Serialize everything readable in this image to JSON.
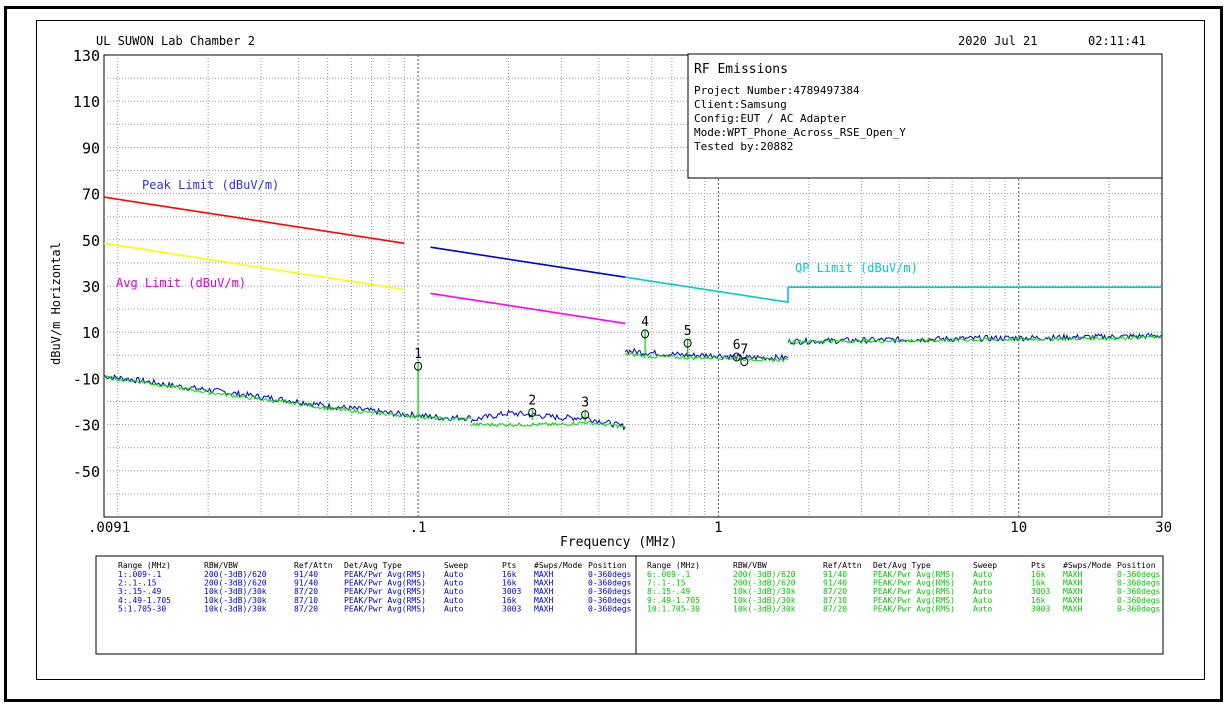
{
  "chart_data": {
    "type": "line",
    "header": {
      "left": "UL SUWON Lab Chamber 2",
      "date": "2020 Jul 21",
      "time": "02:11:41"
    },
    "xlabel": "Frequency (MHz)",
    "ylabel": "dBuV/m Horizontal",
    "x_scale": "log",
    "xlim": [
      0.009,
      30
    ],
    "ylim": [
      -70,
      130
    ],
    "x_ticks": [
      {
        "value": 0.009,
        "label": ".0091"
      },
      {
        "value": 0.1,
        "label": ".1"
      },
      {
        "value": 1,
        "label": "1"
      },
      {
        "value": 10,
        "label": "10"
      },
      {
        "value": 30,
        "label": "30"
      }
    ],
    "y_ticks": [
      {
        "value": 130,
        "label": "130"
      },
      {
        "value": 110,
        "label": "110"
      },
      {
        "value": 90,
        "label": "90"
      },
      {
        "value": 70,
        "label": "70"
      },
      {
        "value": 50,
        "label": "50"
      },
      {
        "value": 30,
        "label": "30"
      },
      {
        "value": 10,
        "label": "10"
      },
      {
        "value": -10,
        "label": "-10"
      },
      {
        "value": -30,
        "label": "-30"
      },
      {
        "value": -50,
        "label": "-50"
      }
    ],
    "grid": true,
    "info_box": {
      "title": "RF Emissions",
      "lines": [
        "Project Number:4789497384",
        "Client:Samsung",
        "Config:EUT / AC Adapter",
        "Mode:WPT_Phone_Across_RSE_Open_Y",
        "Tested by:20882"
      ]
    },
    "limit_labels": {
      "peak": "Peak Limit (dBuV/m)",
      "avg": "Avg Limit (dBuV/m)",
      "qp": "QP Limit (dBuV/m)"
    },
    "limits": [
      {
        "kind": "peak",
        "color": "#ff0000",
        "points": [
          [
            0.009,
            68.5
          ],
          [
            0.09,
            48.5
          ]
        ]
      },
      {
        "kind": "peak",
        "color": "#0000cc",
        "points": [
          [
            0.11,
            46.8
          ],
          [
            0.49,
            33.8
          ]
        ]
      },
      {
        "kind": "avg",
        "color": "#ffff00",
        "points": [
          [
            0.009,
            48.5
          ],
          [
            0.09,
            28.5
          ]
        ]
      },
      {
        "kind": "avg",
        "color": "#ff00ff",
        "points": [
          [
            0.11,
            26.8
          ],
          [
            0.49,
            13.8
          ]
        ]
      },
      {
        "kind": "qp",
        "color": "#00cccc",
        "points": [
          [
            0.49,
            33.8
          ],
          [
            1.705,
            23
          ],
          [
            1.705,
            29.5
          ],
          [
            30,
            29.5
          ]
        ]
      }
    ],
    "series": [
      {
        "color": "#0000cc",
        "segments": [
          [
            [
              0.009,
              -9
            ],
            [
              0.012,
              -11
            ],
            [
              0.015,
              -13
            ],
            [
              0.02,
              -15
            ],
            [
              0.03,
              -18
            ],
            [
              0.04,
              -20
            ],
            [
              0.05,
              -22
            ],
            [
              0.06,
              -23
            ],
            [
              0.08,
              -25
            ],
            [
              0.1,
              -26
            ],
            [
              0.12,
              -27
            ],
            [
              0.15,
              -27
            ]
          ],
          [
            [
              0.15,
              -28
            ],
            [
              0.2,
              -25
            ],
            [
              0.25,
              -26
            ],
            [
              0.3,
              -27
            ],
            [
              0.36,
              -27
            ],
            [
              0.42,
              -29
            ],
            [
              0.49,
              -31
            ]
          ],
          [
            [
              0.49,
              2
            ],
            [
              0.6,
              1
            ],
            [
              0.8,
              0
            ],
            [
              1.0,
              0
            ],
            [
              1.2,
              -1
            ],
            [
              1.5,
              -1
            ],
            [
              1.705,
              -1
            ]
          ],
          [
            [
              1.705,
              6
            ],
            [
              3,
              6.5
            ],
            [
              5,
              7
            ],
            [
              10,
              7.5
            ],
            [
              20,
              8
            ],
            [
              30,
              8.5
            ]
          ]
        ]
      },
      {
        "color": "#00dd00",
        "segments": [
          [
            [
              0.009,
              -9.5
            ],
            [
              0.012,
              -11.5
            ],
            [
              0.015,
              -13.5
            ],
            [
              0.02,
              -16
            ],
            [
              0.03,
              -19
            ],
            [
              0.04,
              -21
            ],
            [
              0.05,
              -23
            ],
            [
              0.06,
              -24
            ],
            [
              0.08,
              -25.5
            ],
            [
              0.1,
              -26.5
            ],
            [
              0.12,
              -27.5
            ],
            [
              0.15,
              -27.5
            ]
          ],
          [
            [
              0.15,
              -30
            ],
            [
              0.2,
              -30
            ],
            [
              0.25,
              -30
            ],
            [
              0.3,
              -30
            ],
            [
              0.36,
              -29
            ],
            [
              0.42,
              -30
            ],
            [
              0.49,
              -31
            ]
          ],
          [
            [
              0.49,
              0.5
            ],
            [
              0.6,
              -0.5
            ],
            [
              0.8,
              -1
            ],
            [
              1.0,
              -1
            ],
            [
              1.2,
              -1.5
            ],
            [
              1.5,
              -2
            ],
            [
              1.705,
              -2
            ]
          ],
          [
            [
              1.705,
              6
            ],
            [
              3,
              6.2
            ],
            [
              5,
              6.5
            ],
            [
              10,
              7
            ],
            [
              20,
              7.5
            ],
            [
              30,
              8
            ]
          ]
        ]
      }
    ],
    "markers": [
      {
        "label": "1",
        "x": 0.1,
        "y": -3
      },
      {
        "label": "2",
        "x": 0.24,
        "y": -23
      },
      {
        "label": "3",
        "x": 0.36,
        "y": -24
      },
      {
        "label": "4",
        "x": 0.57,
        "y": 11
      },
      {
        "label": "5",
        "x": 0.79,
        "y": 7
      },
      {
        "label": "6",
        "x": 1.15,
        "y": 1
      },
      {
        "label": "7",
        "x": 1.22,
        "y": -1
      }
    ],
    "settings_table": {
      "headers": [
        "Range (MHz)",
        "RBW/VBW",
        "Ref/Attn",
        "Det/Avg Type",
        "Sweep",
        "Pts",
        "#Swps/Mode",
        "Position"
      ],
      "left_rows": [
        [
          "1:.009-.1",
          "200(-3dB)/620",
          "91/40",
          "PEAK/Pwr Avg(RMS)",
          "Auto",
          "16k",
          "MAXH",
          "0-360degs"
        ],
        [
          "2:.1-.15",
          "200(-3dB)/620",
          "91/40",
          "PEAK/Pwr Avg(RMS)",
          "Auto",
          "16k",
          "MAXH",
          "0-360degs"
        ],
        [
          "3:.15-.49",
          "10k(-3dB)/30k",
          "87/20",
          "PEAK/Pwr Avg(RMS)",
          "Auto",
          "3003",
          "MAXH",
          "0-360degs"
        ],
        [
          "4:.49-1.705",
          "10k(-3dB)/30k",
          "87/10",
          "PEAK/Pwr Avg(RMS)",
          "Auto",
          "16k",
          "MAXH",
          "0-360degs"
        ],
        [
          "5:1.705-30",
          "10k(-3dB)/30k",
          "87/20",
          "PEAK/Pwr Avg(RMS)",
          "Auto",
          "3003",
          "MAXH",
          "0-360degs"
        ]
      ],
      "right_rows": [
        [
          "6:.009-.1",
          "200(-3dB)/620",
          "91/40",
          "PEAK/Pwr Avg(RMS)",
          "Auto",
          "16k",
          "MAXH",
          "0-360degs"
        ],
        [
          "7:.1-.15",
          "200(-3dB)/620",
          "91/40",
          "PEAK/Pwr Avg(RMS)",
          "Auto",
          "16k",
          "MAXH",
          "0-360degs"
        ],
        [
          "8:.15-.49",
          "10k(-3dB)/30k",
          "87/20",
          "PEAK/Pwr Avg(RMS)",
          "Auto",
          "3003",
          "MAXH",
          "0-360degs"
        ],
        [
          "9:.49-1.705",
          "10k(-3dB)/30k",
          "87/10",
          "PEAK/Pwr Avg(RMS)",
          "Auto",
          "16k",
          "MAXH",
          "0-360degs"
        ],
        [
          "10:1.705-30",
          "10k(-3dB)/30k",
          "87/20",
          "PEAK/Pwr Avg(RMS)",
          "Auto",
          "3003",
          "MAXH",
          "0-360degs"
        ]
      ],
      "left_color": "#0000cc",
      "right_color": "#00cc00"
    }
  }
}
